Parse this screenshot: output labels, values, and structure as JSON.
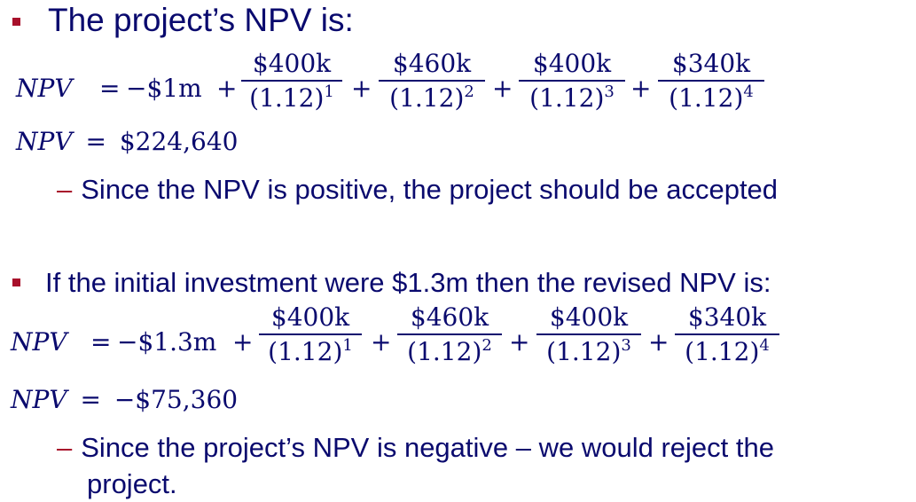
{
  "section1": {
    "heading": "The project’s NPV is:",
    "equation": {
      "lhs": "NPV",
      "equals": "=",
      "initial": "−$1m",
      "plus": "+",
      "terms": [
        {
          "num": "$400k",
          "den": "(1.12)",
          "exp": "1"
        },
        {
          "num": "$460k",
          "den": "(1.12)",
          "exp": "2"
        },
        {
          "num": "$400k",
          "den": "(1.12)",
          "exp": "3"
        },
        {
          "num": "$340k",
          "den": "(1.12)",
          "exp": "4"
        }
      ]
    },
    "result": {
      "lhs": "NPV",
      "equals": "=",
      "value": "$224,640"
    },
    "note_dash": "–",
    "note": "Since the NPV is positive, the project should be accepted"
  },
  "section2": {
    "heading": "If the initial investment were $1.3m then the revised NPV is:",
    "equation": {
      "lhs": "NPV",
      "equals": "=",
      "initial": "−$1.3m",
      "plus": "+",
      "terms": [
        {
          "num": "$400k",
          "den": "(1.12)",
          "exp": "1"
        },
        {
          "num": "$460k",
          "den": "(1.12)",
          "exp": "2"
        },
        {
          "num": "$400k",
          "den": "(1.12)",
          "exp": "3"
        },
        {
          "num": "$340k",
          "den": "(1.12)",
          "exp": "4"
        }
      ]
    },
    "result": {
      "lhs": "NPV",
      "equals": "=",
      "value": "−$75,360"
    },
    "note_dash": "–",
    "note_line1": "Since the project’s NPV is negative – we would reject the",
    "note_line2": "project."
  },
  "colors": {
    "text": "#0a0a6e",
    "accent": "#a8102b",
    "background": "#ffffff"
  }
}
